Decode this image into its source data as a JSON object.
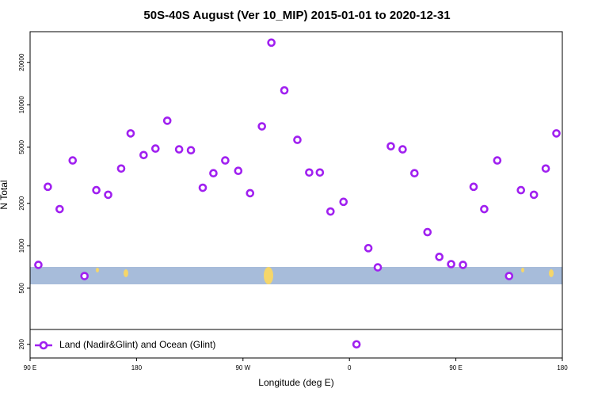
{
  "chart_data": {
    "type": "scatter",
    "title": "50S-40S August (Ver 10_MIP)   2015-01-01 to 2020-12-31",
    "xlabel": "Longitude (deg E)",
    "ylabel": "N Total",
    "log_y": true,
    "legend": "bottom-left",
    "xlim": [
      90,
      540
    ],
    "xticks": [
      {
        "value": 90,
        "label": "90 E"
      },
      180,
      {
        "value": 270,
        "label": "90 W"
      },
      {
        "value": 360,
        "label": "0"
      },
      {
        "value": 450,
        "label": "90 E"
      },
      {
        "value": 540,
        "label": "180"
      }
    ],
    "ylim": [
      160,
      33000
    ],
    "yticks": [
      200,
      500,
      1000,
      2000,
      5000,
      10000,
      20000
    ],
    "series": [
      {
        "name": "Land (Nadir&Glint) and Ocean (Glint)",
        "color": "#a020f0",
        "x": [
          97,
          105,
          115,
          126,
          136,
          146,
          156,
          167,
          175,
          186,
          196,
          206,
          216,
          226,
          236,
          245,
          255,
          266,
          276,
          286,
          294,
          305,
          316,
          326,
          335,
          344,
          355,
          366,
          376,
          384,
          395,
          405,
          415,
          426,
          436,
          446,
          456,
          465,
          474,
          485,
          495,
          505,
          516,
          526,
          535
        ],
        "values": [
          732,
          2620,
          1820,
          4030,
          610,
          2480,
          2300,
          3530,
          6270,
          4400,
          4890,
          7710,
          4830,
          4760,
          2580,
          3270,
          4030,
          3400,
          2360,
          7030,
          27600,
          12650,
          5640,
          3310,
          3310,
          1750,
          2050,
          200,
          962,
          703,
          5080,
          4830,
          3270,
          1250,
          834,
          741,
          732,
          2620,
          1820,
          4030,
          610,
          2480,
          2300,
          3530,
          6270
        ]
      }
    ]
  }
}
